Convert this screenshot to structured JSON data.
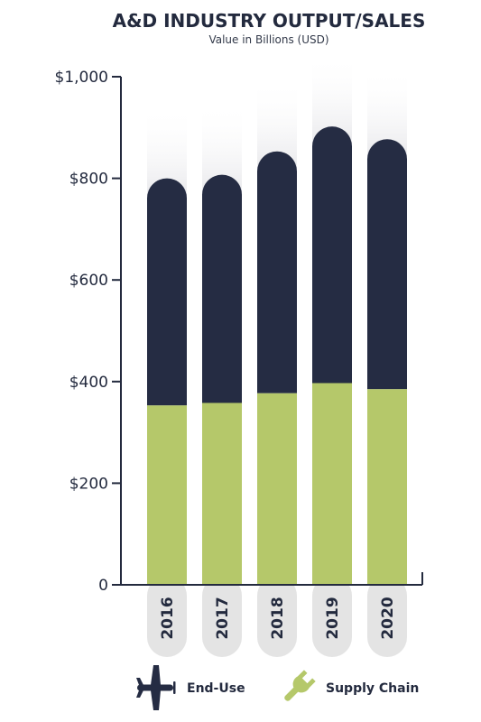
{
  "colors": {
    "end_use": "#252c43",
    "supply_chain": "#b5c86a",
    "axis": "#232a3e",
    "label_pill": "#e4e4e4",
    "fade": "#ececec"
  },
  "legend": {
    "end_use_label": "End-Use",
    "end_use_icon": "airplane-icon",
    "supply_chain_label": "Supply Chain",
    "supply_chain_icon": "wrench-icon"
  },
  "chart_data": {
    "type": "bar",
    "stacked": true,
    "title": "A&D INDUSTRY OUTPUT/SALES",
    "subtitle": "Value in Billions (USD)",
    "categories": [
      "2016",
      "2017",
      "2018",
      "2019",
      "2020"
    ],
    "series": [
      {
        "name": "Supply Chain",
        "values": [
          353,
          358,
          377,
          397,
          385
        ]
      },
      {
        "name": "End-Use",
        "values": [
          447,
          449,
          476,
          505,
          492
        ]
      }
    ],
    "ylim": [
      0,
      1000
    ],
    "yticks": [
      0,
      200,
      400,
      600,
      800,
      1000
    ],
    "ytick_labels": [
      "0",
      "$200",
      "$400",
      "$600",
      "$800",
      "$1,000"
    ],
    "grid": false,
    "legend_position": "bottom"
  }
}
